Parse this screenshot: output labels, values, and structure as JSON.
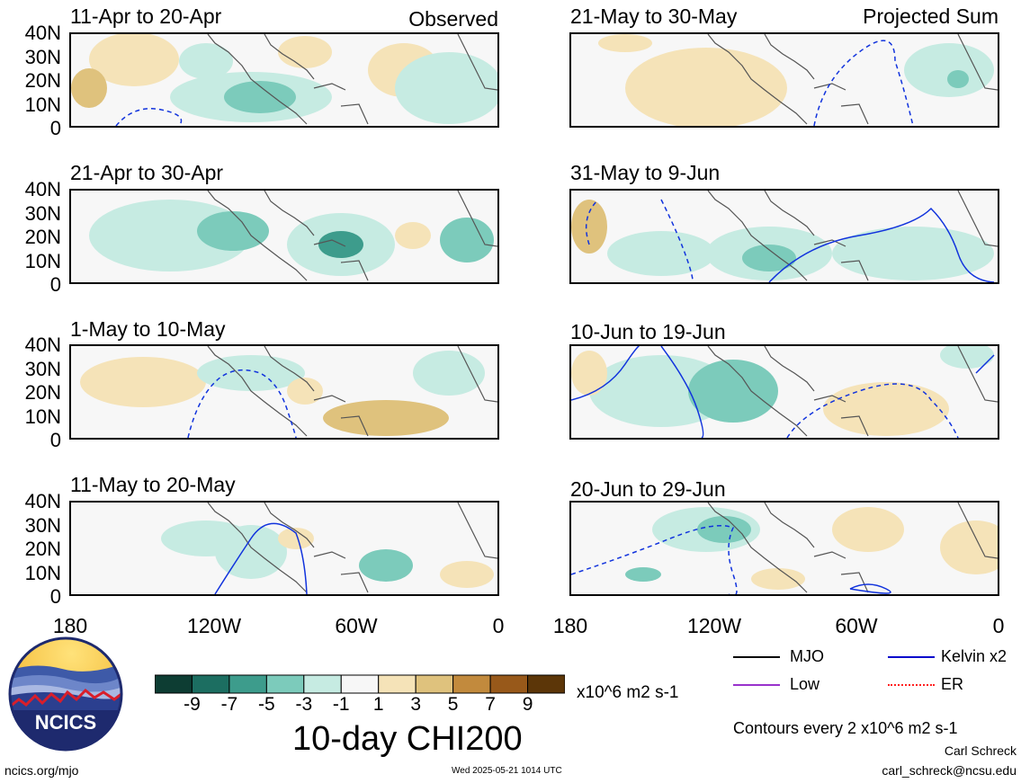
{
  "panels_left_tag": "Observed",
  "panels_right_tag": "Projected Sum",
  "panels": [
    {
      "title": "11-Apr to 20-Apr"
    },
    {
      "title": "21-Apr to 30-Apr"
    },
    {
      "title": "1-May to 10-May"
    },
    {
      "title": "11-May to 20-May"
    },
    {
      "title": "21-May to 30-May"
    },
    {
      "title": "31-May to 9-Jun"
    },
    {
      "title": "10-Jun to 19-Jun"
    },
    {
      "title": "20-Jun to 29-Jun"
    }
  ],
  "lat_labels": [
    "40N",
    "30N",
    "20N",
    "10N",
    "0"
  ],
  "lon_labels": [
    "180",
    "120W",
    "60W",
    "0"
  ],
  "colorbar": {
    "labels": [
      "-9",
      "-7",
      "-5",
      "-3",
      "-1",
      "1",
      "3",
      "5",
      "7",
      "9"
    ],
    "colors": [
      "#0d3d33",
      "#1c6e61",
      "#3d9c8c",
      "#7ccbbb",
      "#c6ebe2",
      "#f7f7f7",
      "#f5e3b8",
      "#dfc27d",
      "#c28a3d",
      "#98591a",
      "#5c3608"
    ],
    "unit": "x10^6 m2 s-1"
  },
  "main_label": "10-day CHI200",
  "legend": [
    {
      "label": "MJO",
      "color": "#000000",
      "style": "solid"
    },
    {
      "label": "Kelvin x2",
      "color": "#0000cc",
      "style": "solid"
    },
    {
      "label": "Low",
      "color": "#9933cc",
      "style": "solid"
    },
    {
      "label": "ER",
      "color": "#ff2222",
      "style": "dotted"
    }
  ],
  "contour_note": "Contours every 2 x10^6 m2 s-1",
  "author_name": "Carl Schreck",
  "author_email": "carl_schreck@ncsu.edu",
  "site": "ncics.org/mjo",
  "timestamp": "Wed 2025-05-21 1014 UTC",
  "logo_text": "NCICS"
}
